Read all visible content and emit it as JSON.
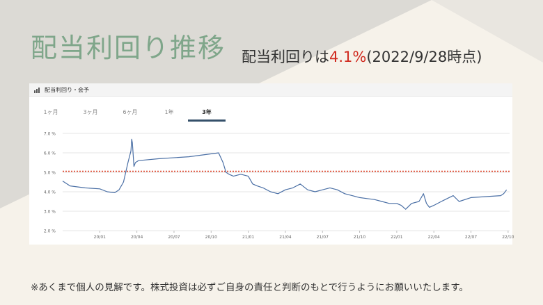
{
  "header": {
    "title": "配当利回り推移",
    "yield_prefix": "配当利回りは",
    "yield_value": "4.1%",
    "yield_suffix": "(2022/9/28時点)"
  },
  "card": {
    "title": "配当利回り・会予",
    "tabs": [
      "1ヶ月",
      "3ヶ月",
      "6ヶ月",
      "1年",
      "3年"
    ],
    "active_tab": "3年"
  },
  "footer": {
    "disclaimer": "※あくまで個人の見解です。株式投資は必ずご自身の責任と判断のもとで行うようにお願いいたします。"
  },
  "colors": {
    "title": "#7fa68a",
    "highlight": "#d02a1f",
    "line": "#4a6fa5",
    "reference_line": "#e0452b"
  },
  "chart_data": {
    "type": "line",
    "title": "配当利回り・会予",
    "xlabel": "",
    "ylabel": "",
    "ylim": [
      2.0,
      7.0
    ],
    "ytick_labels": [
      "2.0 %",
      "3.0 %",
      "4.0 %",
      "5.0 %",
      "6.0 %",
      "7.0 %"
    ],
    "yticks": [
      2,
      3,
      4,
      5,
      6,
      7
    ],
    "x_ticks": [
      "20/01",
      "20/04",
      "20/07",
      "20/10",
      "21/01",
      "21/04",
      "21/07",
      "21/10",
      "22/01",
      "22/04",
      "22/07",
      "22/10"
    ],
    "grid": true,
    "reference_line": 5.05,
    "series": [
      {
        "x": [
          2019.75,
          2019.8,
          2019.9,
          2020.0,
          2020.05,
          2020.1,
          2020.13,
          2020.16,
          2020.19,
          2020.21,
          2020.215,
          2020.22,
          2020.225,
          2020.23,
          2020.24,
          2020.26,
          2020.4,
          2020.6,
          2020.8,
          2020.83,
          2020.85,
          2020.87,
          2020.9,
          2020.95,
          2021.0,
          2021.03,
          2021.06,
          2021.1,
          2021.15,
          2021.2,
          2021.25,
          2021.3,
          2021.35,
          2021.4,
          2021.45,
          2021.5,
          2021.55,
          2021.6,
          2021.65,
          2021.7,
          2021.75,
          2021.8,
          2021.85,
          2021.9,
          2021.95,
          2022.0,
          2022.03,
          2022.06,
          2022.1,
          2022.15,
          2022.18,
          2022.2,
          2022.22,
          2022.25,
          2022.3,
          2022.38,
          2022.42,
          2022.5,
          2022.6,
          2022.7,
          2022.72,
          2022.74
        ],
        "y": [
          4.55,
          4.3,
          4.2,
          4.15,
          4.0,
          3.95,
          4.1,
          4.5,
          5.5,
          6.1,
          6.7,
          6.5,
          5.9,
          5.3,
          5.5,
          5.6,
          5.7,
          5.8,
          6.0,
          5.5,
          5.0,
          4.9,
          4.8,
          4.9,
          4.8,
          4.4,
          4.3,
          4.2,
          4.0,
          3.9,
          4.1,
          4.2,
          4.4,
          4.1,
          4.0,
          4.1,
          4.2,
          4.1,
          3.9,
          3.8,
          3.7,
          3.65,
          3.6,
          3.5,
          3.4,
          3.4,
          3.3,
          3.1,
          3.4,
          3.5,
          3.9,
          3.4,
          3.2,
          3.3,
          3.5,
          3.8,
          3.5,
          3.7,
          3.75,
          3.8,
          3.9,
          4.1
        ]
      }
    ]
  }
}
